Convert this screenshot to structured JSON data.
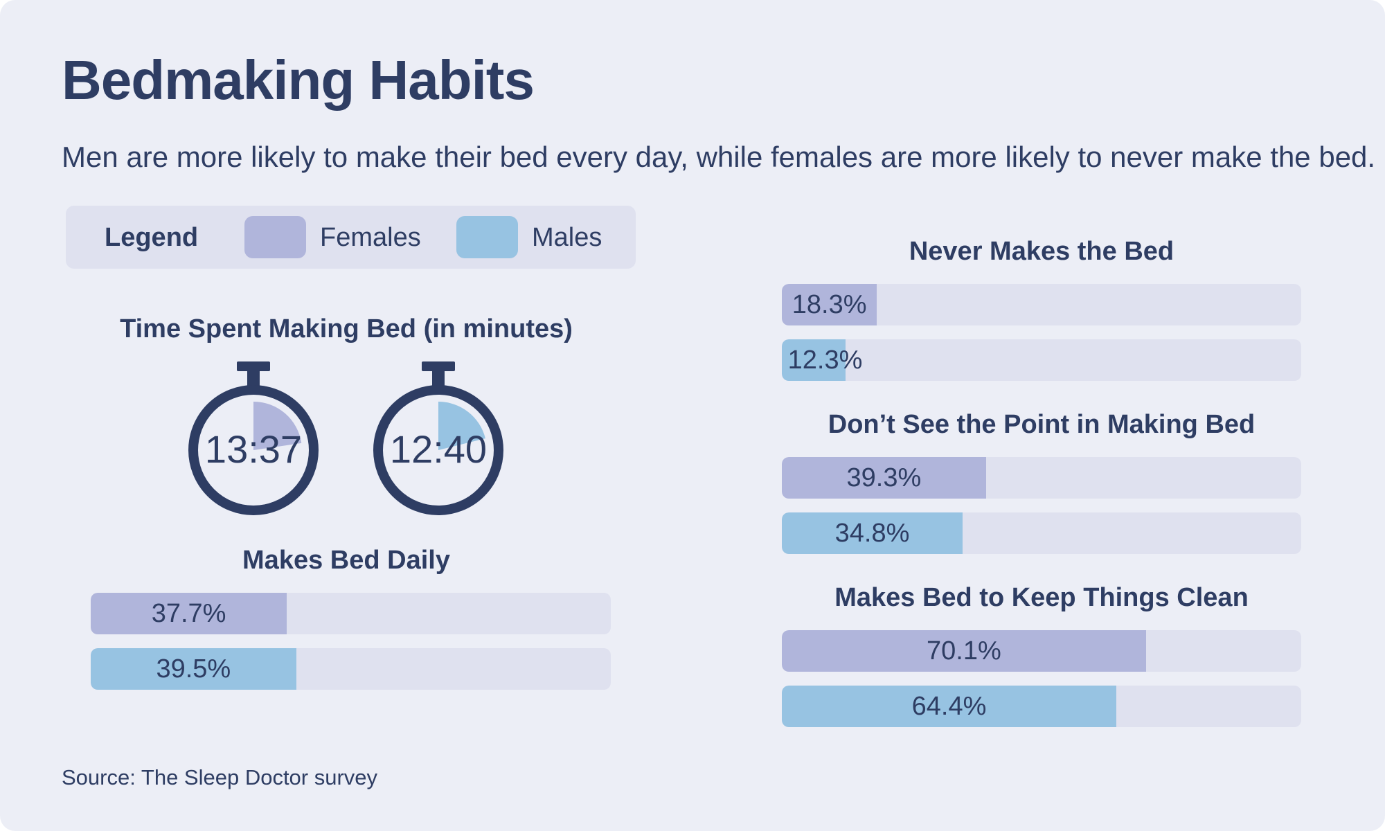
{
  "title": "Bedmaking Habits",
  "subtitle": "Men are more likely to make their bed every day, while females are more likely to never make the bed.",
  "legend": {
    "title": "Legend",
    "females": "Females",
    "males": "Males"
  },
  "colors": {
    "background": "#eceef6",
    "females": "#b0b5db",
    "males": "#97c3e2",
    "track": "#dfe1ef",
    "text": "#2e3d63"
  },
  "source": "Source: The Sleep Doctor survey",
  "stopwatch_icon": "stopwatch-icon",
  "chart_data": [
    {
      "type": "gauge",
      "title": "Time Spent Making Bed (in minutes)",
      "series": [
        {
          "name": "Females",
          "label": "13:37",
          "minutes": 13.617
        },
        {
          "name": "Males",
          "label": "12:40",
          "minutes": 12.667
        }
      ],
      "full_scale_minutes": 60
    },
    {
      "type": "bar",
      "title": "Makes Bed Daily",
      "unit": "%",
      "xlim": [
        0,
        100
      ],
      "series": [
        {
          "name": "Females",
          "value": 37.7,
          "label": "37.7%"
        },
        {
          "name": "Males",
          "value": 39.5,
          "label": "39.5%"
        }
      ]
    },
    {
      "type": "bar",
      "title": "Never Makes the Bed",
      "unit": "%",
      "xlim": [
        0,
        100
      ],
      "series": [
        {
          "name": "Females",
          "value": 18.3,
          "label": "18.3%"
        },
        {
          "name": "Males",
          "value": 12.3,
          "label": "12.3%"
        }
      ]
    },
    {
      "type": "bar",
      "title": "Don’t See the Point in Making Bed",
      "unit": "%",
      "xlim": [
        0,
        100
      ],
      "series": [
        {
          "name": "Females",
          "value": 39.3,
          "label": "39.3%"
        },
        {
          "name": "Males",
          "value": 34.8,
          "label": "34.8%"
        }
      ]
    },
    {
      "type": "bar",
      "title": "Makes Bed to Keep Things Clean",
      "unit": "%",
      "xlim": [
        0,
        100
      ],
      "series": [
        {
          "name": "Females",
          "value": 70.1,
          "label": "70.1%"
        },
        {
          "name": "Males",
          "value": 64.4,
          "label": "64.4%"
        }
      ]
    }
  ]
}
